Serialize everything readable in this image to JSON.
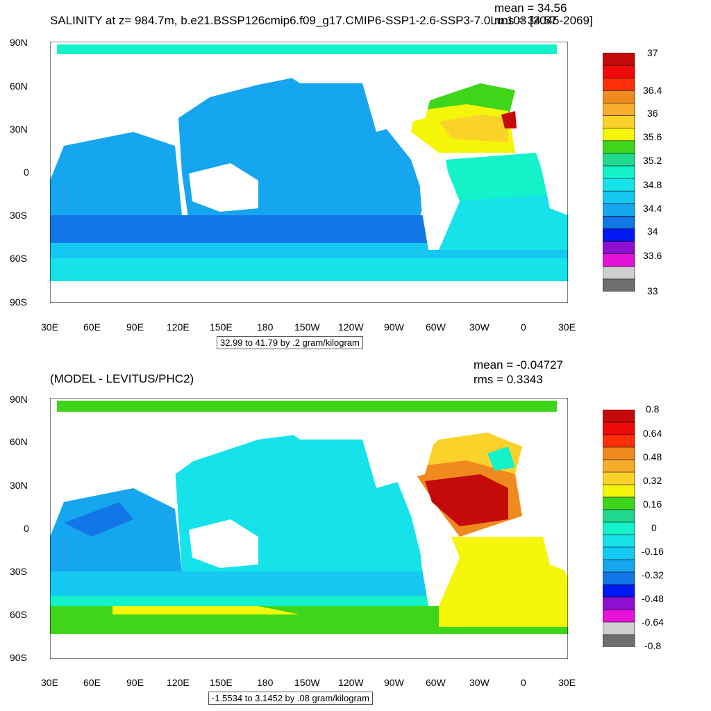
{
  "panels": [
    {
      "title": "SALINITY at z= 984.7m, b.e21.BSSP126cmip6.f09_g17.CMIP6-SSP1-2.6-SSP3-7.0Lu.103 [2045-2069]",
      "mean": "mean = 34.56",
      "rms": "rms = 34.57",
      "range_label": "32.99 to 41.79 by .2 gram/kilogram",
      "colorbar": {
        "colors": [
          "#6e6e6e",
          "#d0d0d0",
          "#e612d8",
          "#8f0fd1",
          "#0019f5",
          "#1277e6",
          "#16a6f0",
          "#14c8f2",
          "#16e2ea",
          "#13f2c8",
          "#1fd88e",
          "#3ed51a",
          "#f5f50a",
          "#fbd22a",
          "#f7ac2c",
          "#f08a1e",
          "#ff2f0a",
          "#ef0a0a",
          "#c50a0a"
        ],
        "labels": [
          "33",
          "33.6",
          "34",
          "34.4",
          "34.8",
          "35.2",
          "35.6",
          "36",
          "36.4",
          "37"
        ]
      }
    },
    {
      "title": "(MODEL - LEVITUS/PHC2)",
      "mean": "mean = -0.04727",
      "rms": "rms = 0.3343",
      "range_label": "-1.5534 to 3.1452 by .08 gram/kilogram",
      "colorbar": {
        "colors": [
          "#6e6e6e",
          "#d0d0d0",
          "#e612d8",
          "#8f0fd1",
          "#0019f5",
          "#1277e6",
          "#16a6f0",
          "#14c8f2",
          "#16e2ea",
          "#13f2c8",
          "#1fd88e",
          "#3ed51a",
          "#f5f50a",
          "#fbd22a",
          "#f7ac2c",
          "#f08a1e",
          "#ff2f0a",
          "#ef0a0a",
          "#c50a0a"
        ],
        "labels": [
          "-0.8",
          "-0.64",
          "-0.48",
          "-0.32",
          "-0.16",
          "0",
          "0.16",
          "0.32",
          "0.48",
          "0.64",
          "0.8"
        ]
      }
    }
  ],
  "lat_labels": [
    "90N",
    "60N",
    "30N",
    "0",
    "30S",
    "60S",
    "90S"
  ],
  "lon_labels": [
    "30E",
    "60E",
    "90E",
    "120E",
    "150E",
    "180",
    "150W",
    "120W",
    "90W",
    "60W",
    "30W",
    "0",
    "30E"
  ],
  "colors": {
    "land": "#ffffff",
    "background": "#ffffff"
  }
}
